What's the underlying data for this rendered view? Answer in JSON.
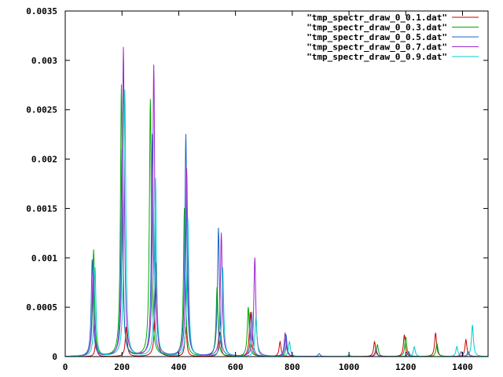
{
  "chart_data": {
    "type": "line",
    "title": "",
    "xlabel": "",
    "ylabel": "",
    "xlim": [
      0,
      1490
    ],
    "ylim": [
      0,
      0.0035
    ],
    "x_ticks": [
      0,
      200,
      400,
      600,
      800,
      1000,
      1200,
      1400
    ],
    "x_tick_labels": [
      "0",
      "200",
      "400",
      "600",
      "800",
      "1000",
      "1200",
      "1400"
    ],
    "y_ticks": [
      0,
      0.0005,
      0.001,
      0.0015,
      0.002,
      0.0025,
      0.003,
      0.0035
    ],
    "y_tick_labels": [
      "0",
      "0.0005",
      "0.001",
      "0.0015",
      "0.002",
      "0.0025",
      "0.003",
      "0.0035"
    ],
    "grid": false,
    "legend_position": "top-right",
    "series": [
      {
        "name": "\"tmp_spectr_draw_0_0.1.dat\"",
        "color": "#cc0000",
        "peaks": [
          [
            108,
            0.00015
          ],
          [
            215,
            0.0003
          ],
          [
            320,
            0.00095
          ],
          [
            425,
            0.0003
          ],
          [
            545,
            0.00025
          ],
          [
            652,
            0.00045
          ],
          [
            757,
            0.00015
          ],
          [
            1090,
            0.00015
          ],
          [
            1195,
            0.00022
          ],
          [
            1305,
            0.00024
          ],
          [
            1412,
            0.00017
          ]
        ]
      },
      {
        "name": "\"tmp_spectr_draw_0_0.3.dat\"",
        "color": "#00aa00",
        "peaks": [
          [
            100,
            0.00108
          ],
          [
            198,
            0.00275
          ],
          [
            300,
            0.0026
          ],
          [
            420,
            0.0015
          ],
          [
            535,
            0.0007
          ],
          [
            645,
            0.0005
          ],
          [
            780,
            0.00012
          ],
          [
            1100,
            0.00012
          ],
          [
            1200,
            0.0002
          ],
          [
            1310,
            0.00013
          ]
        ]
      },
      {
        "name": "\"tmp_spectr_draw_0_0.5.dat\"",
        "color": "#1e64c8",
        "peaks": [
          [
            95,
            0.00098
          ],
          [
            200,
            0.0021
          ],
          [
            307,
            0.00225
          ],
          [
            425,
            0.00225
          ],
          [
            540,
            0.0013
          ],
          [
            657,
            0.00045
          ],
          [
            778,
            0.00022
          ],
          [
            895,
            3e-05
          ],
          [
            1210,
            5e-05
          ],
          [
            1420,
            5e-05
          ]
        ]
      },
      {
        "name": "\"tmp_spectr_draw_0_0.7.dat\"",
        "color": "#9b27c9",
        "peaks": [
          [
            98,
            0.00085
          ],
          [
            205,
            0.00313
          ],
          [
            312,
            0.00295
          ],
          [
            428,
            0.0019
          ],
          [
            550,
            0.00125
          ],
          [
            668,
            0.001
          ],
          [
            775,
            0.00024
          ],
          [
            1095,
            8e-05
          ],
          [
            1395,
            5e-05
          ]
        ]
      },
      {
        "name": "\"tmp_spectr_draw_0_0.9.dat\"",
        "color": "#00cccc",
        "peaks": [
          [
            105,
            0.0009
          ],
          [
            210,
            0.0027
          ],
          [
            318,
            0.0018
          ],
          [
            432,
            0.0014
          ],
          [
            555,
            0.0009
          ],
          [
            672,
            0.0004
          ],
          [
            790,
            0.00015
          ],
          [
            1000,
            2e-05
          ],
          [
            1230,
            0.0001
          ],
          [
            1380,
            0.0001
          ],
          [
            1435,
            0.00032
          ]
        ]
      }
    ]
  }
}
